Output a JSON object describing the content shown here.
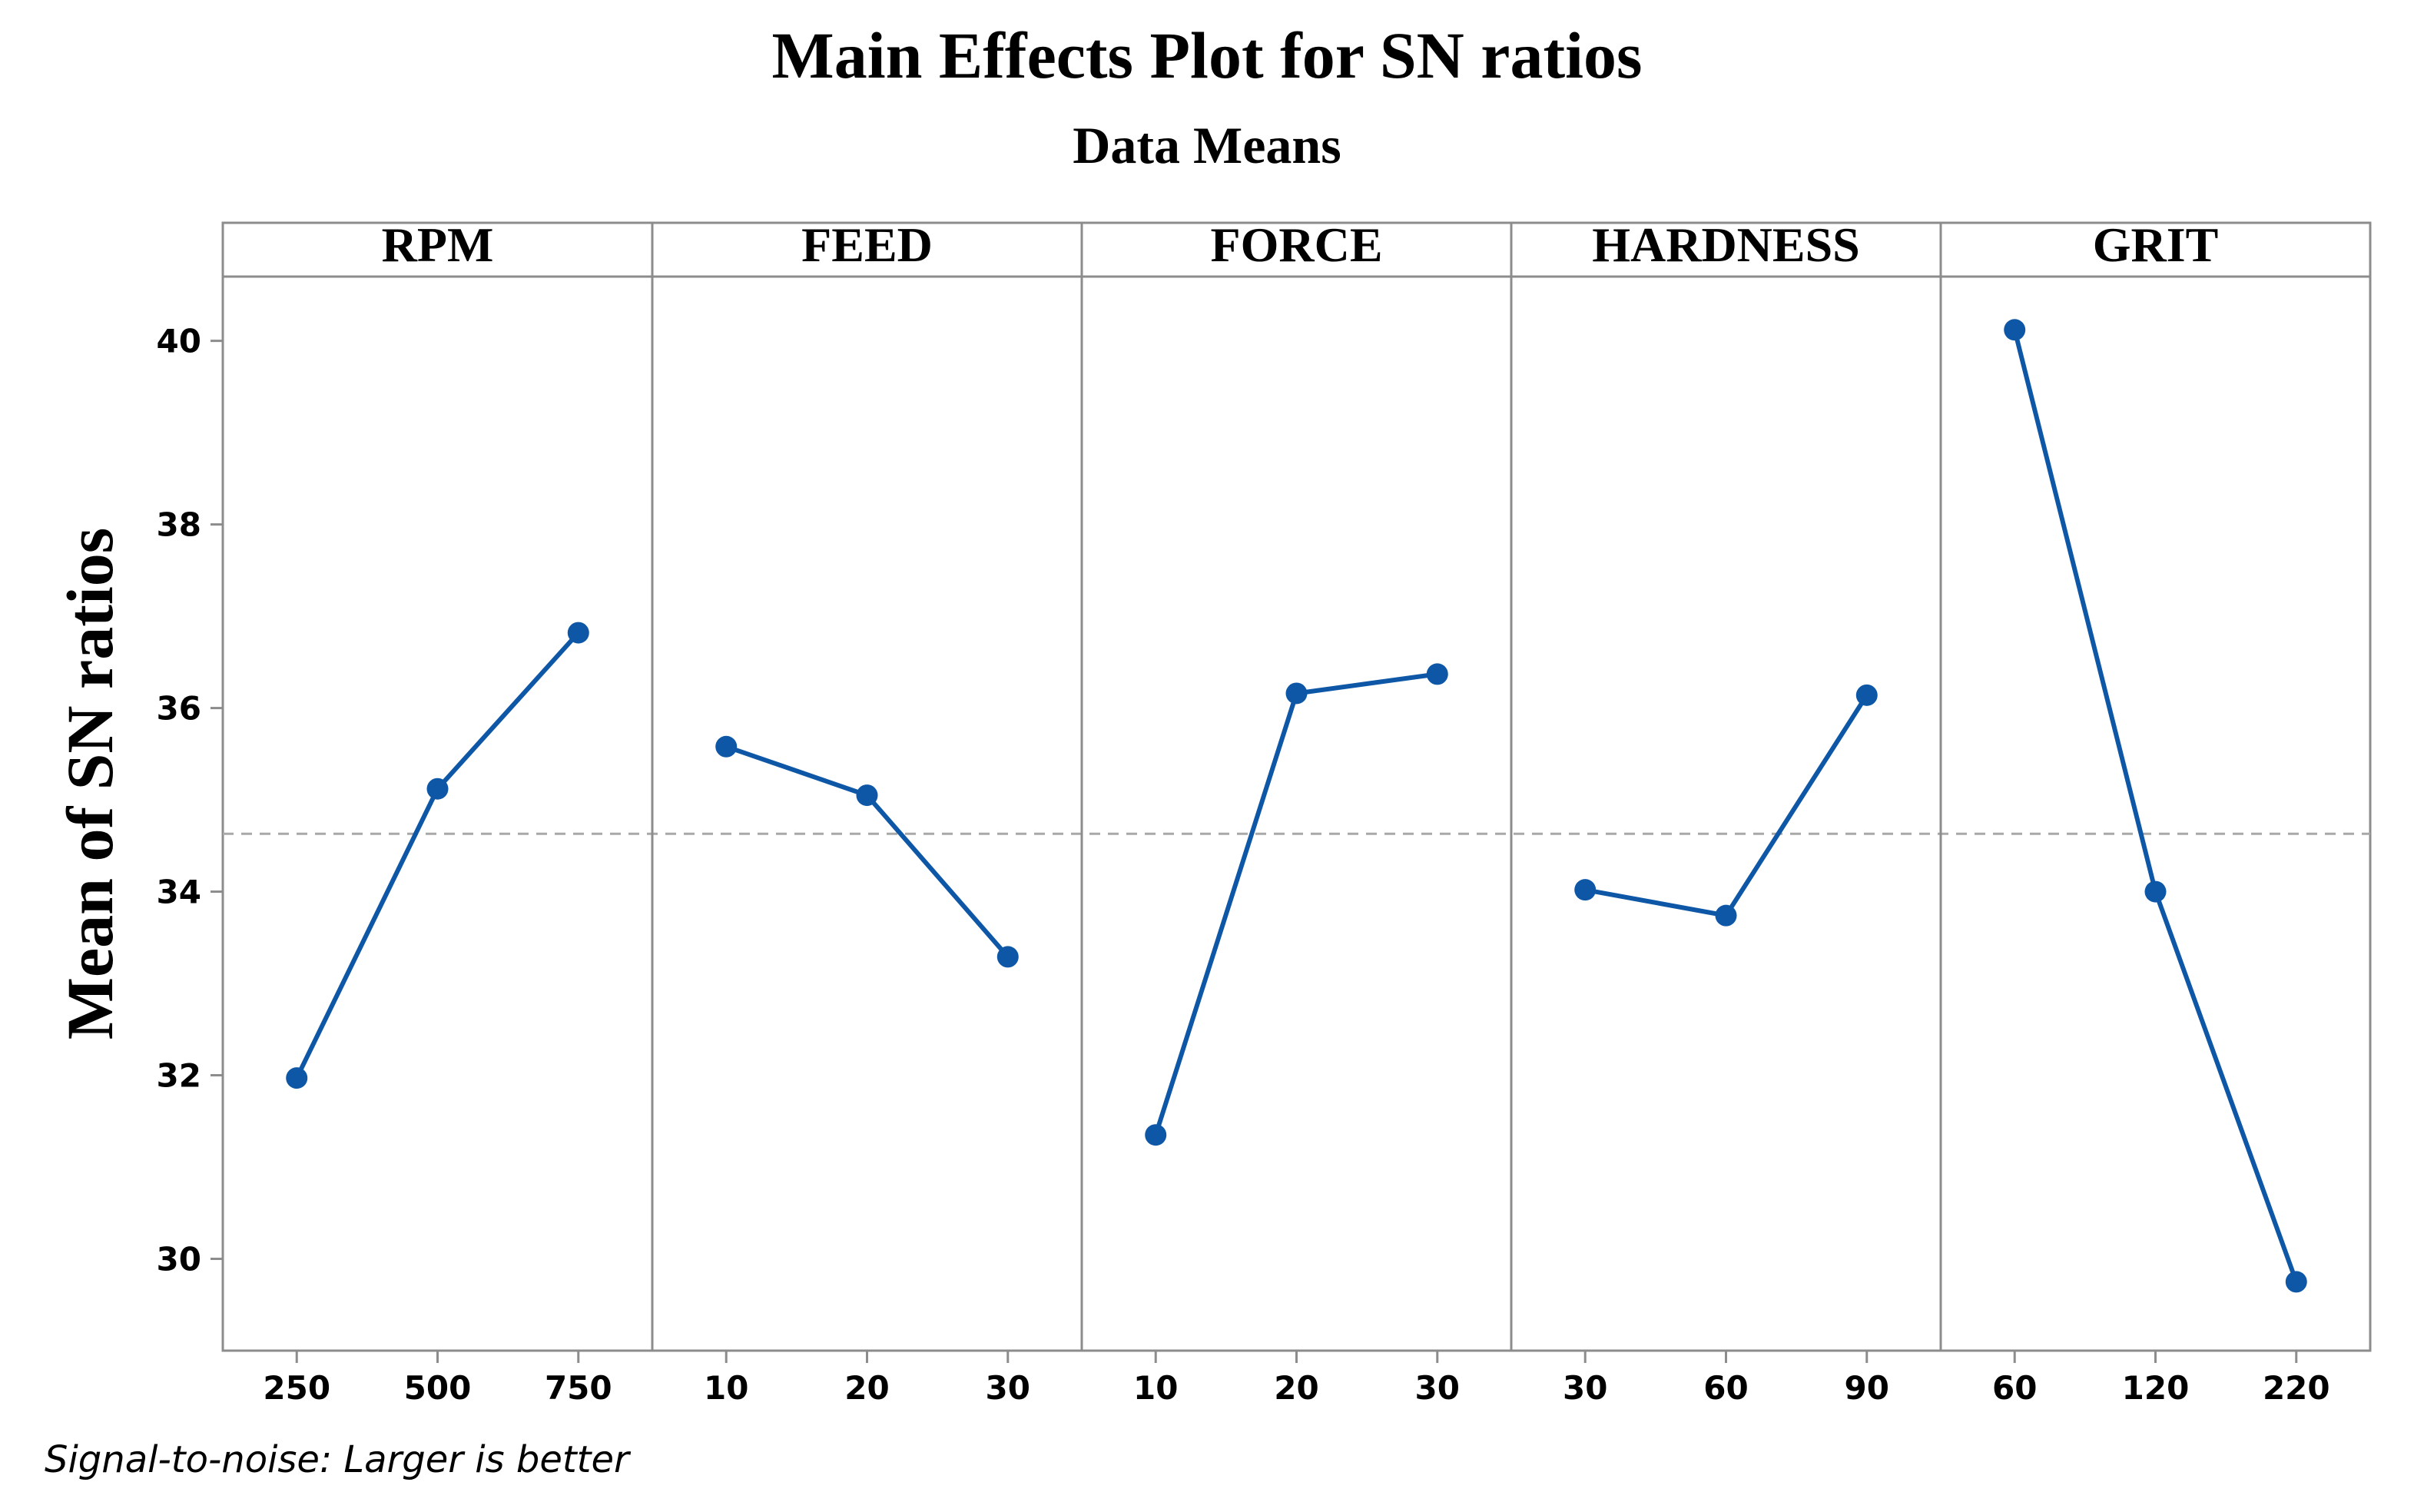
{
  "chart_data": {
    "type": "line",
    "title": "Main Effects Plot for SN ratios",
    "subtitle": "Data Means",
    "ylabel": "Mean of SN ratios",
    "footnote": "Signal-to-noise: Larger is better",
    "ylim": [
      29.0,
      40.7
    ],
    "yticks": [
      "30",
      "32",
      "34",
      "36",
      "38",
      "40"
    ],
    "reference_line": 34.63,
    "grid": false,
    "line_color": "#0e57a6",
    "panels": [
      {
        "name": "RPM",
        "categories": [
          "250",
          "500",
          "750"
        ],
        "values": [
          31.97,
          35.12,
          36.82
        ]
      },
      {
        "name": "FEED",
        "categories": [
          "10",
          "20",
          "30"
        ],
        "values": [
          35.58,
          35.05,
          33.29
        ]
      },
      {
        "name": "FORCE",
        "categories": [
          "10",
          "20",
          "30"
        ],
        "values": [
          31.35,
          36.16,
          36.37
        ]
      },
      {
        "name": "HARDNESS",
        "categories": [
          "30",
          "60",
          "90"
        ],
        "values": [
          34.02,
          33.74,
          36.14
        ]
      },
      {
        "name": "GRIT",
        "categories": [
          "60",
          "120",
          "220"
        ],
        "values": [
          40.12,
          34.0,
          29.75
        ]
      }
    ]
  }
}
